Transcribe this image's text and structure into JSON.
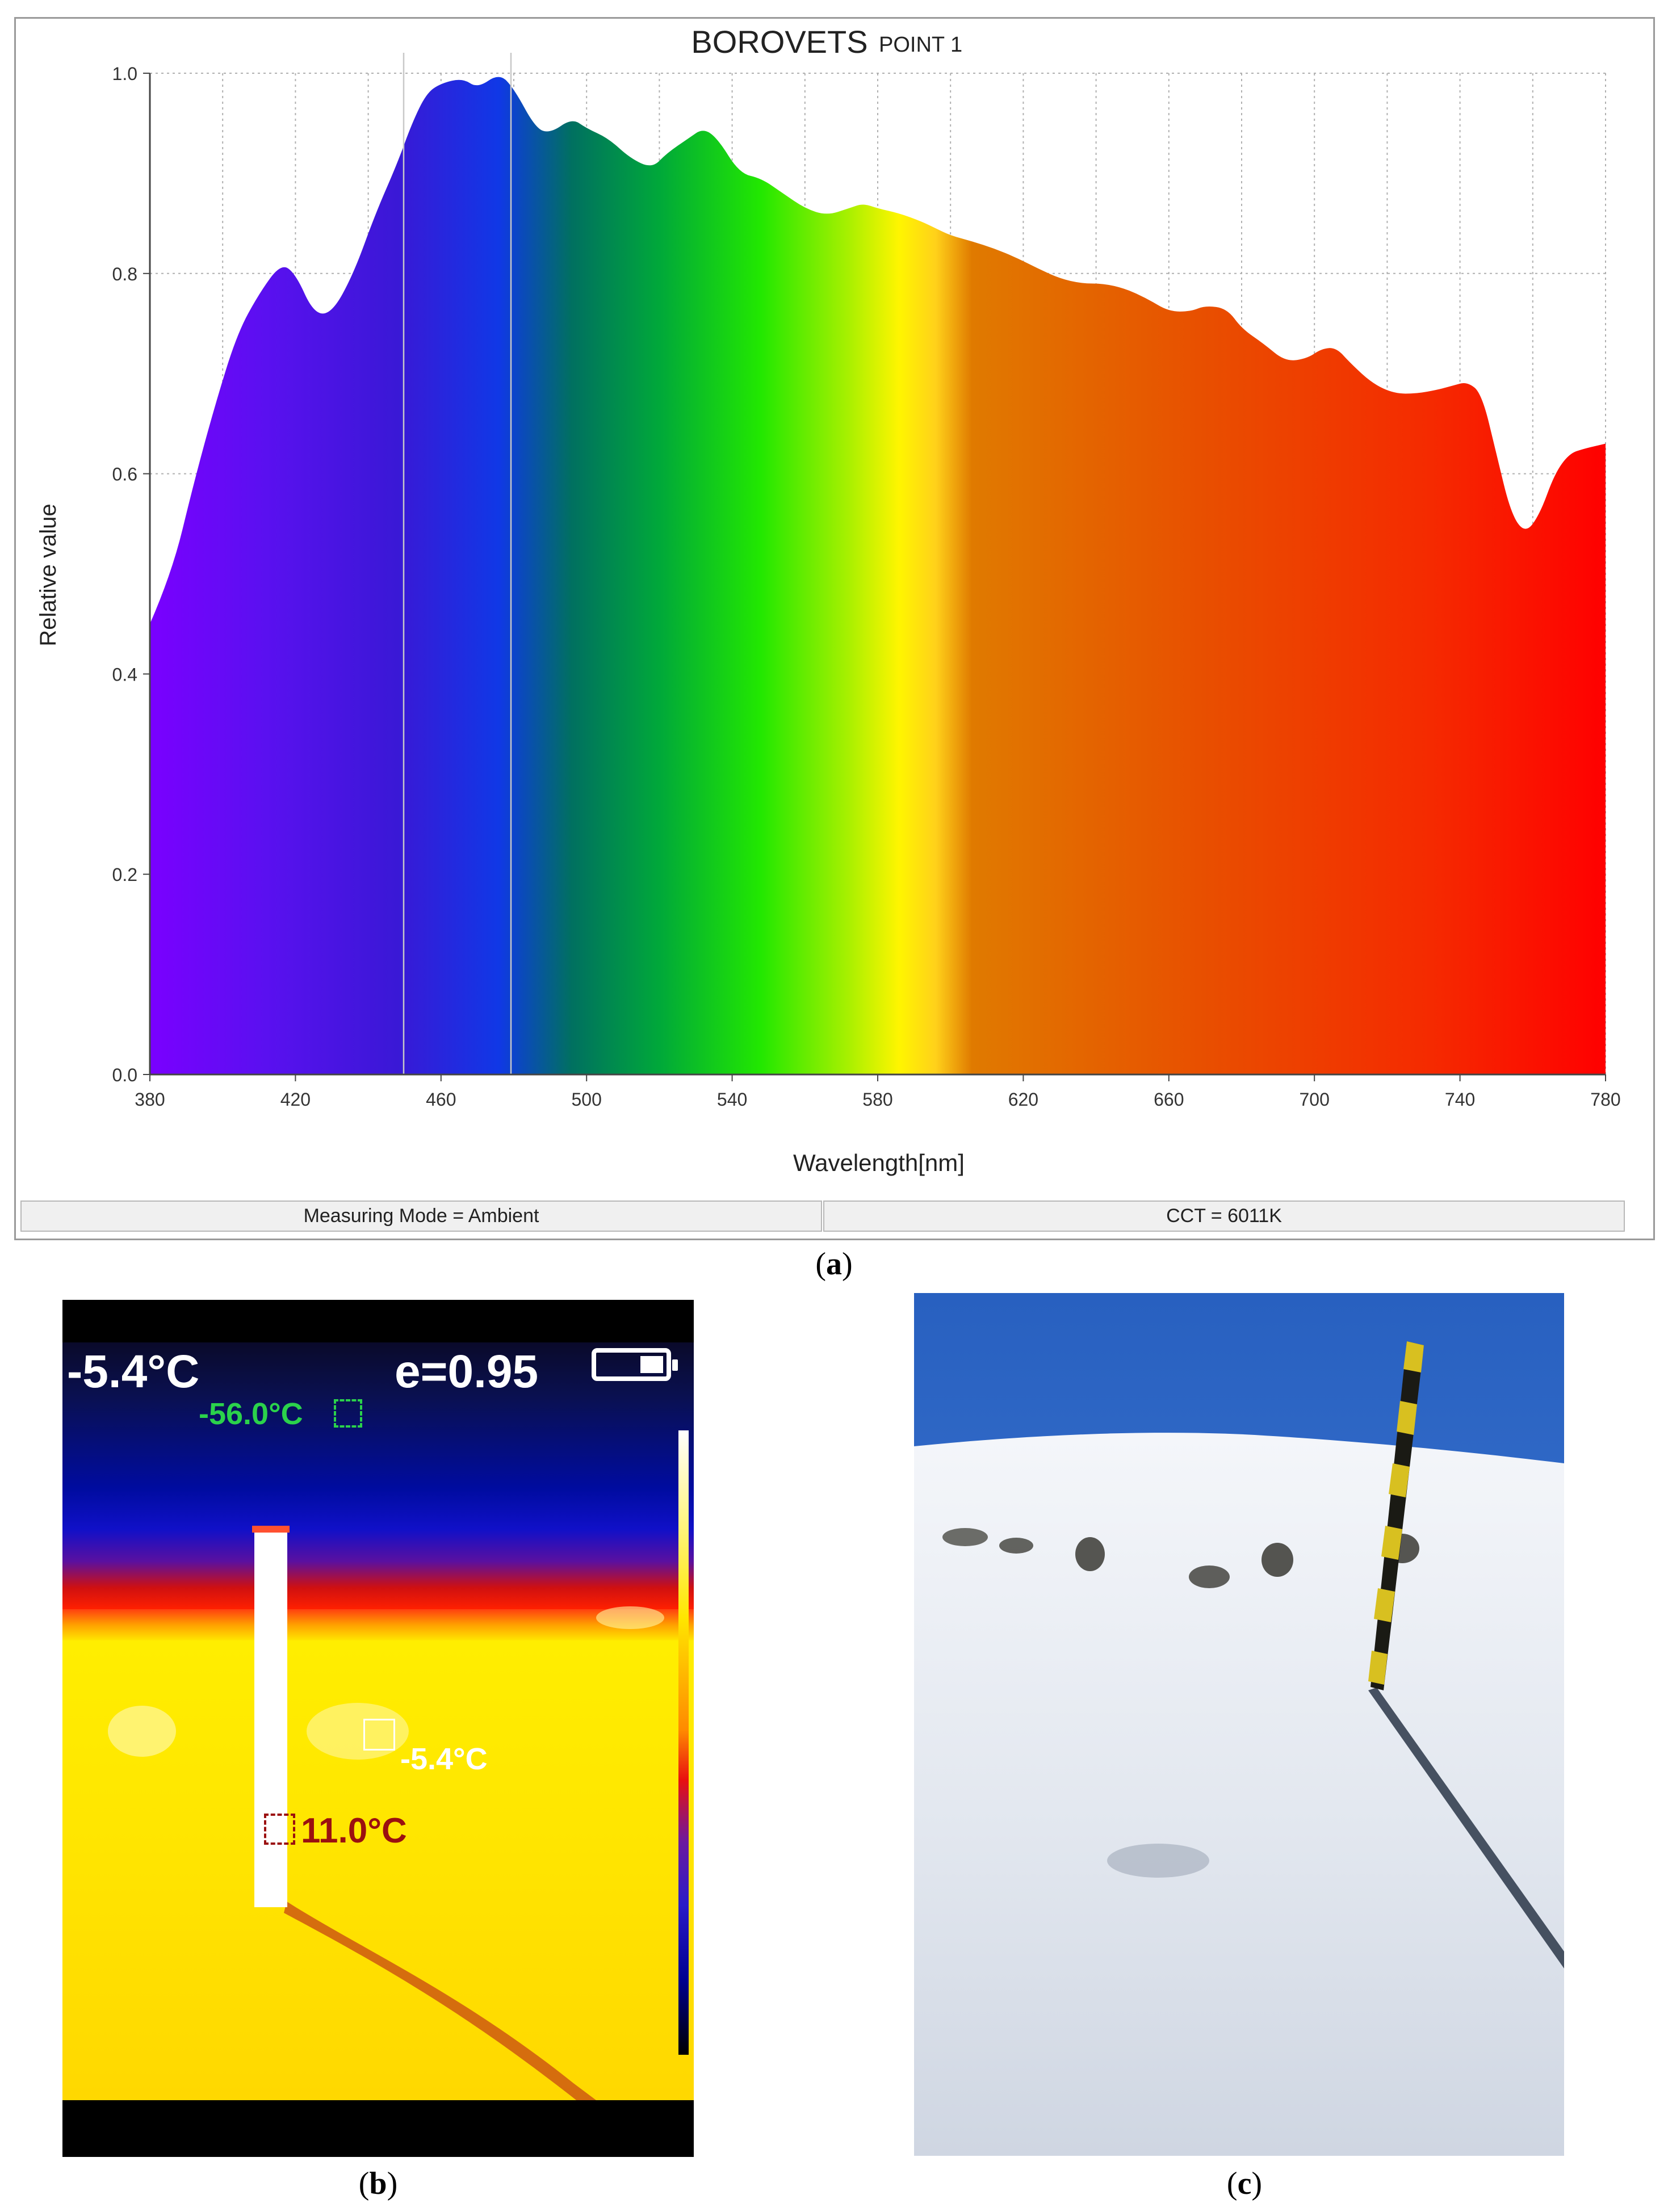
{
  "chart_data": {
    "type": "area",
    "title": "BOROVETS",
    "subtitle": "POINT 1",
    "xlabel": "Wavelength[nm]",
    "ylabel": "Relative value",
    "xlim": [
      380,
      780
    ],
    "ylim": [
      0,
      1.0
    ],
    "x_ticks": [
      "380",
      "420",
      "460",
      "500",
      "540",
      "580",
      "620",
      "660",
      "700",
      "740",
      "780"
    ],
    "y_ticks": [
      "0.0",
      "0.2",
      "0.4",
      "0.6",
      "0.8",
      "1.0"
    ],
    "grid": true,
    "fill": "visible-spectrum gradient",
    "x": [
      380,
      386,
      392,
      398,
      404,
      410,
      416,
      420,
      425,
      430,
      436,
      442,
      448,
      452,
      456,
      460,
      466,
      470,
      476,
      480,
      486,
      490,
      496,
      500,
      506,
      512,
      518,
      522,
      528,
      532,
      536,
      542,
      548,
      554,
      560,
      566,
      572,
      576,
      580,
      586,
      592,
      596,
      600,
      606,
      612,
      618,
      624,
      630,
      636,
      642,
      648,
      654,
      660,
      666,
      670,
      676,
      680,
      686,
      692,
      698,
      702,
      706,
      710,
      716,
      722,
      728,
      734,
      738,
      742,
      746,
      750,
      754,
      758,
      762,
      766,
      770,
      774,
      780
    ],
    "y": [
      0.45,
      0.5,
      0.59,
      0.67,
      0.74,
      0.78,
      0.81,
      0.8,
      0.76,
      0.76,
      0.8,
      0.86,
      0.91,
      0.95,
      0.98,
      0.99,
      0.995,
      0.985,
      1.0,
      0.985,
      0.945,
      0.94,
      0.955,
      0.945,
      0.935,
      0.915,
      0.905,
      0.92,
      0.935,
      0.945,
      0.935,
      0.9,
      0.895,
      0.88,
      0.865,
      0.858,
      0.865,
      0.87,
      0.865,
      0.86,
      0.852,
      0.845,
      0.838,
      0.832,
      0.825,
      0.816,
      0.805,
      0.795,
      0.79,
      0.79,
      0.785,
      0.775,
      0.762,
      0.762,
      0.768,
      0.765,
      0.745,
      0.73,
      0.712,
      0.715,
      0.725,
      0.726,
      0.71,
      0.69,
      0.68,
      0.68,
      0.684,
      0.688,
      0.692,
      0.68,
      0.62,
      0.56,
      0.54,
      0.56,
      0.6,
      0.62,
      0.625,
      0.63
    ]
  },
  "status": {
    "measuring_mode": "Measuring Mode = Ambient",
    "cct": "CCT = 6011K"
  },
  "captions": {
    "a": "a",
    "b": "b",
    "c": "c"
  },
  "thermal": {
    "ambient_temp": "-5.4°C",
    "emissivity": "e=0.95",
    "marker_cold": "-56.0°C",
    "marker_center": "-5.4°C",
    "marker_hot": "11.0°C",
    "colors": {
      "cold": "#2bd24b",
      "center": "#ffffff",
      "hot": "#9b1010"
    }
  },
  "icons": {
    "battery": "battery-icon"
  }
}
